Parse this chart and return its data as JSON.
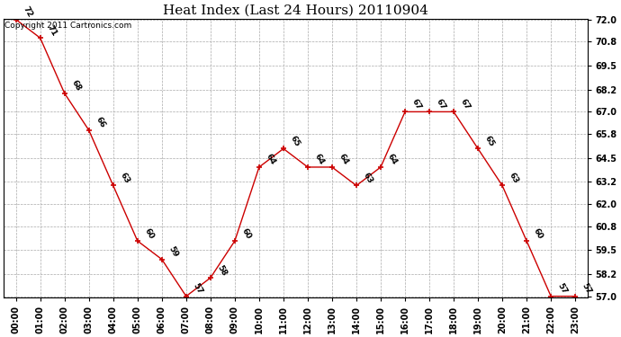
{
  "title": "Heat Index (Last 24 Hours) 20110904",
  "copyright": "Copyright 2011 Cartronics.com",
  "hours": [
    "00:00",
    "01:00",
    "02:00",
    "03:00",
    "04:00",
    "05:00",
    "06:00",
    "07:00",
    "08:00",
    "09:00",
    "10:00",
    "11:00",
    "12:00",
    "13:00",
    "14:00",
    "15:00",
    "16:00",
    "17:00",
    "18:00",
    "19:00",
    "20:00",
    "21:00",
    "22:00",
    "23:00"
  ],
  "values": [
    72,
    71,
    68,
    66,
    63,
    60,
    59,
    57,
    58,
    60,
    64,
    65,
    64,
    64,
    63,
    64,
    67,
    67,
    67,
    65,
    63,
    60,
    57,
    57
  ],
  "ylim_min": 57.0,
  "ylim_max": 72.0,
  "yticks": [
    57.0,
    58.2,
    59.5,
    60.8,
    62.0,
    63.2,
    64.5,
    65.8,
    67.0,
    68.2,
    69.5,
    70.8,
    72.0
  ],
  "line_color": "#cc0000",
  "marker_color": "#cc0000",
  "bg_color": "#ffffff",
  "plot_bg_color": "#ffffff",
  "grid_color": "#aaaaaa",
  "title_fontsize": 11,
  "label_fontsize": 6.5,
  "tick_fontsize": 7,
  "copyright_fontsize": 6.5
}
